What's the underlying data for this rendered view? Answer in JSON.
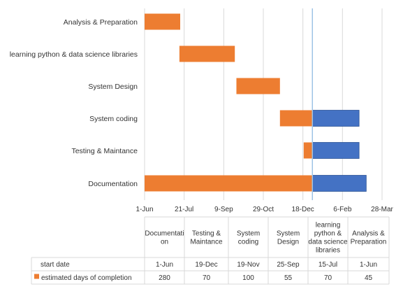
{
  "chart_data": {
    "type": "bar",
    "subtype": "gantt-stacked-horizontal",
    "categories": [
      "Analysis & Preparation",
      "learning python & data science libraries",
      "System Design",
      "System coding",
      "Testing & Maintance",
      "Documentation"
    ],
    "x_axis": {
      "ticks": [
        "1-Jun",
        "21-Jul",
        "9-Sep",
        "29-Oct",
        "18-Dec",
        "6-Feb",
        "28-Mar"
      ],
      "tick_days": [
        0,
        50,
        100,
        150,
        200,
        250,
        300
      ],
      "range_days": [
        0,
        300
      ]
    },
    "grid": "vertical",
    "series": [
      {
        "name": "estimated days of completion",
        "color": "#ED7D31",
        "bars": [
          {
            "category": "Analysis & Preparation",
            "start_day": 0,
            "length_days": 45
          },
          {
            "category": "learning python & data science libraries",
            "start_day": 44,
            "length_days": 70
          },
          {
            "category": "System Design",
            "start_day": 116,
            "length_days": 55
          },
          {
            "category": "System coding",
            "start_day": 171,
            "length_days": 41
          },
          {
            "category": "Testing & Maintance",
            "start_day": 201,
            "length_days": 11
          },
          {
            "category": "Documentation",
            "start_day": 0,
            "length_days": 212
          }
        ]
      },
      {
        "name": "",
        "color": "#4472C4",
        "bars": [
          {
            "category": "System coding",
            "start_day": 212,
            "length_days": 59
          },
          {
            "category": "Testing & Maintance",
            "start_day": 212,
            "length_days": 59
          },
          {
            "category": "Documentation",
            "start_day": 212,
            "length_days": 68
          }
        ]
      }
    ],
    "current_line_day": 212,
    "current_line_color": "#9DC3E6"
  },
  "data_table": {
    "columns": [
      [
        "Documentati",
        "on"
      ],
      [
        "Testing &",
        "Maintance"
      ],
      [
        "System",
        "coding"
      ],
      [
        "System",
        "Design"
      ],
      [
        "learning",
        "python &",
        "data science",
        "libraries"
      ],
      [
        "Analysis &",
        "Preparation"
      ]
    ],
    "rows": [
      {
        "label": "start date",
        "legend_key": false,
        "values": [
          "1-Jun",
          "19-Dec",
          "19-Nov",
          "25-Sep",
          "15-Jul",
          "1-Jun"
        ]
      },
      {
        "label": "estimated days of completion",
        "legend_key": true,
        "legend_color": "#ED7D31",
        "values": [
          "280",
          "70",
          "100",
          "55",
          "70",
          "45"
        ]
      }
    ]
  }
}
